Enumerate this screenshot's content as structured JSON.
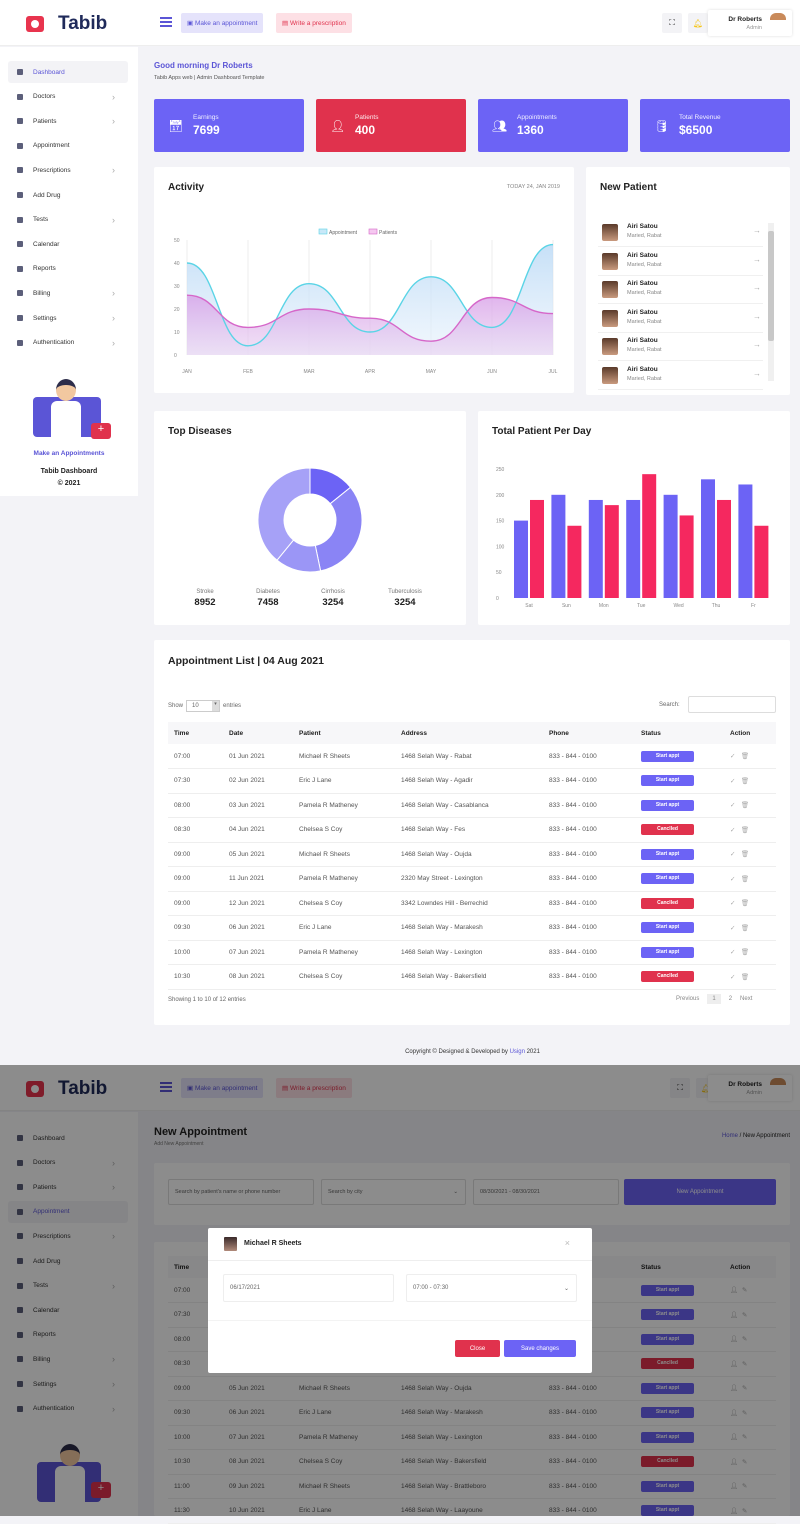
{
  "brand": "Tabib",
  "header": {
    "make_appointment": "Make an appointment",
    "write_prescription": "Write a prescription",
    "user_name": "Dr Roberts",
    "user_role": "Admin"
  },
  "sidebar": {
    "items": [
      {
        "label": "Dashboard",
        "chev": false
      },
      {
        "label": "Doctors",
        "chev": true
      },
      {
        "label": "Patients",
        "chev": true
      },
      {
        "label": "Appointment",
        "chev": false
      },
      {
        "label": "Prescriptions",
        "chev": true
      },
      {
        "label": "Add Drug",
        "chev": false
      },
      {
        "label": "Tests",
        "chev": true
      },
      {
        "label": "Calendar",
        "chev": false
      },
      {
        "label": "Reports",
        "chev": false
      },
      {
        "label": "Billing",
        "chev": true
      },
      {
        "label": "Settings",
        "chev": true
      },
      {
        "label": "Authentication",
        "chev": true
      }
    ],
    "promo_link": "Make an Appointments",
    "promo_title": "Tabib Dashboard",
    "promo_year": "© 2021"
  },
  "greeting": {
    "title": "Good morning Dr Roberts",
    "subtitle": "Tabib Apps web | Admin Dashboard Template"
  },
  "stats": [
    {
      "label": "Earnings",
      "value": "7699",
      "color": "#6c63f5",
      "icon": "calendar-check"
    },
    {
      "label": "Patients",
      "value": "400",
      "color": "#e0324d",
      "icon": "patient"
    },
    {
      "label": "Appointments",
      "value": "1360",
      "color": "#6c63f5",
      "icon": "user-plus"
    },
    {
      "label": "Total Revenue",
      "value": "$6500",
      "color": "#6c63f5",
      "icon": "database"
    }
  ],
  "activity": {
    "title": "Activity",
    "date": "TODAY 24, JAN 2019"
  },
  "new_patient": {
    "title": "New Patient",
    "items": [
      {
        "name": "Airi Satou",
        "sub": "Maried, Rabat"
      },
      {
        "name": "Airi Satou",
        "sub": "Maried, Rabat"
      },
      {
        "name": "Airi Satou",
        "sub": "Maried, Rabat"
      },
      {
        "name": "Airi Satou",
        "sub": "Maried, Rabat"
      },
      {
        "name": "Airi Satou",
        "sub": "Maried, Rabat"
      },
      {
        "name": "Airi Satou",
        "sub": "Maried, Rabat"
      }
    ]
  },
  "chart_data": [
    {
      "type": "area",
      "categories": [
        "JAN",
        "FEB",
        "MAR",
        "APR",
        "MAY",
        "JUN",
        "JUL"
      ],
      "ylim": [
        0,
        50
      ],
      "yticks": [
        0,
        10,
        20,
        30,
        40,
        50
      ],
      "legend": "top",
      "series": [
        {
          "name": "Appointment",
          "values": [
            40,
            4,
            31,
            10,
            34,
            12,
            48
          ],
          "color": "#5ad4e6"
        },
        {
          "name": "Patients",
          "values": [
            26,
            12,
            20,
            16,
            6,
            25,
            18
          ],
          "color": "#d667c9"
        }
      ]
    },
    {
      "type": "pie",
      "title": "Top Diseases",
      "categories": [
        "Stroke",
        "Diabetes",
        "Cirrhosis",
        "Tuberculosis"
      ],
      "values": [
        8952,
        7458,
        3254,
        3254
      ],
      "display_values": [
        "8952",
        "7458",
        "3254",
        "3254"
      ],
      "colors": [
        "#a6a1f7",
        "#8a84f5",
        "#6c63f5",
        "#9b96f6"
      ]
    },
    {
      "type": "bar",
      "title": "Total Patient Per Day",
      "categories": [
        "Sat",
        "Sun",
        "Mon",
        "Tue",
        "Wed",
        "Thu",
        "Fr"
      ],
      "ylim": [
        0,
        250
      ],
      "yticks": [
        0,
        50,
        100,
        150,
        200,
        250
      ],
      "series": [
        {
          "values": [
            150,
            200,
            190,
            190,
            200,
            230,
            220
          ],
          "color": "#6c63f5"
        },
        {
          "values": [
            190,
            140,
            180,
            240,
            160,
            190,
            140
          ],
          "color": "#f5285f"
        }
      ]
    }
  ],
  "appointments": {
    "title": "Appointment List | 04 Aug 2021",
    "show": "Show",
    "entries_value": "10",
    "entries": "entries",
    "search": "Search:",
    "columns": [
      "Time",
      "Date",
      "Patient",
      "Address",
      "Phone",
      "Status",
      "Action"
    ],
    "rows": [
      [
        "07:00",
        "01 Jun 2021",
        "Michael R Sheets",
        "1468 Selah Way - Rabat",
        "833 - 844 - 0100",
        "Start appt"
      ],
      [
        "07:30",
        "02 Jun 2021",
        "Eric J Lane",
        "1468 Selah Way - Agadir",
        "833 - 844 - 0100",
        "Start appt"
      ],
      [
        "08:00",
        "03 Jun 2021",
        "Pamela R Matheney",
        "1468 Selah Way - Casablanca",
        "833 - 844 - 0100",
        "Start appt"
      ],
      [
        "08:30",
        "04 Jun 2021",
        "Chelsea S Coy",
        "1468 Selah Way - Fes",
        "833 - 844 - 0100",
        "Canclled"
      ],
      [
        "09:00",
        "05 Jun 2021",
        "Michael R Sheets",
        "1468 Selah Way - Oujda",
        "833 - 844 - 0100",
        "Start appt"
      ],
      [
        "09:00",
        "11 Jun 2021",
        "Pamela R Matheney",
        "2320 May Street - Lexington",
        "833 - 844 - 0100",
        "Start appt"
      ],
      [
        "09:00",
        "12 Jun 2021",
        "Chelsea S Coy",
        "3342 Lowndes Hill - Berrechid",
        "833 - 844 - 0100",
        "Canclled"
      ],
      [
        "09:30",
        "06 Jun 2021",
        "Eric J Lane",
        "1468 Selah Way - Marakesh",
        "833 - 844 - 0100",
        "Start appt"
      ],
      [
        "10:00",
        "07 Jun 2021",
        "Pamela R Matheney",
        "1468 Selah Way - Lexington",
        "833 - 844 - 0100",
        "Start appt"
      ],
      [
        "10:30",
        "08 Jun 2021",
        "Chelsea S Coy",
        "1468 Selah Way - Bakersfield",
        "833 - 844 - 0100",
        "Canclled"
      ]
    ],
    "info": "Showing 1 to 10 of 12 entries",
    "previous": "Previous",
    "pages": [
      "1",
      "2"
    ],
    "next": "Next"
  },
  "footer": {
    "text": "Copyright © Designed & Developed by ",
    "link": "Usign",
    "year": " 2021"
  },
  "new_appointment": {
    "title": "New Appointment",
    "subtitle": "Add New Appointment",
    "breadcrumb_home": "Home",
    "breadcrumb_current": "New Appointment",
    "search_placeholder": "Search by patient's name or phone number",
    "city_placeholder": "Search by city",
    "date_range": "08/30/2021 - 08/30/2021",
    "button": "New Appointment",
    "rows": [
      [
        "07:00",
        "",
        "",
        "",
        "",
        "Start appt"
      ],
      [
        "07:30",
        "",
        "",
        "",
        "",
        "Start appt"
      ],
      [
        "08:00",
        "",
        "",
        "",
        "",
        "Start appt"
      ],
      [
        "08:30",
        "",
        "",
        "",
        "",
        "Canclled"
      ],
      [
        "09:00",
        "05 Jun 2021",
        "Michael R Sheets",
        "1468 Selah Way - Oujda",
        "833 - 844 - 0100",
        "Start appt"
      ],
      [
        "09:30",
        "06 Jun 2021",
        "Eric J Lane",
        "1468 Selah Way - Marakesh",
        "833 - 844 - 0100",
        "Start appt"
      ],
      [
        "10:00",
        "07 Jun 2021",
        "Pamela R Matheney",
        "1468 Selah Way - Lexington",
        "833 - 844 - 0100",
        "Start appt"
      ],
      [
        "10:30",
        "08 Jun 2021",
        "Chelsea S Coy",
        "1468 Selah Way - Bakersfield",
        "833 - 844 - 0100",
        "Canclled"
      ],
      [
        "11:00",
        "09 Jun 2021",
        "Michael R Sheets",
        "1468 Selah Way - Brattleboro",
        "833 - 844 - 0100",
        "Start appt"
      ],
      [
        "11:30",
        "10 Jun 2021",
        "Eric J Lane",
        "1468 Selah Way - Laayoune",
        "833 - 844 - 0100",
        "Start appt"
      ]
    ]
  },
  "modal": {
    "patient": "Michael R Sheets",
    "date": "06/17/2021",
    "time_slot": "07:00 - 07:30",
    "close": "Close",
    "save": "Save changes"
  }
}
